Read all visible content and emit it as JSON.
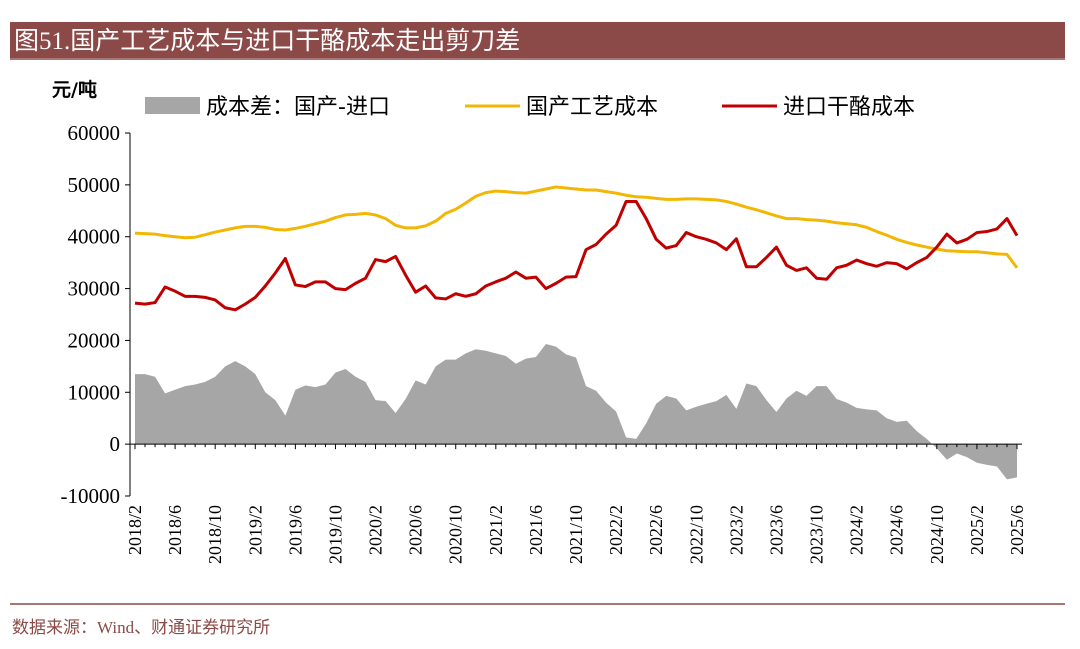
{
  "chart_data": {
    "type": "line",
    "title": "图51.国产工艺成本与进口干酪成本走出剪刀差",
    "y_label": "元/吨",
    "source": "数据来源：Wind、财通证券研究所",
    "categories": [
      "2018/2",
      null,
      null,
      null,
      "2018/6",
      null,
      null,
      null,
      "2018/10",
      null,
      null,
      null,
      "2019/2",
      null,
      null,
      null,
      "2019/6",
      null,
      null,
      null,
      "2019/10",
      null,
      null,
      null,
      "2020/2",
      null,
      null,
      null,
      "2020/6",
      null,
      null,
      null,
      "2020/10",
      null,
      null,
      null,
      "2021/2",
      null,
      null,
      null,
      "2021/6",
      null,
      null,
      null,
      "2021/10",
      null,
      null,
      null,
      "2022/2",
      null,
      null,
      null,
      "2022/6",
      null,
      null,
      null,
      "2022/10",
      null,
      null,
      null,
      "2023/2",
      null,
      null,
      null,
      "2023/6",
      null,
      null,
      null,
      "2023/10",
      null,
      null,
      null,
      "2024/2",
      null,
      null,
      null,
      "2024/6",
      null,
      null,
      null,
      "2024/10",
      null,
      null,
      null,
      "2025/2",
      null,
      null,
      null,
      "2025/6"
    ],
    "ylim": [
      -10000,
      60000
    ],
    "yticks": [
      -10000,
      0,
      10000,
      20000,
      30000,
      40000,
      50000,
      60000
    ],
    "series": [
      {
        "name": "成本差：国产-进口",
        "type": "area",
        "color": "#a6a6a6",
        "values": [
          13500,
          13500,
          13000,
          9800,
          10500,
          11200,
          11500,
          12000,
          13000,
          15000,
          16000,
          15000,
          13500,
          10000,
          8500,
          5500,
          10500,
          11300,
          11000,
          11500,
          13800,
          14500,
          13000,
          12000,
          8500,
          8300,
          6000,
          8700,
          12300,
          11500,
          15000,
          16300,
          16300,
          17500,
          18300,
          18000,
          17500,
          17000,
          15500,
          16500,
          16800,
          19300,
          18800,
          17300,
          16700,
          11200,
          10300,
          8000,
          6300,
          1300,
          1000,
          4000,
          7800,
          9300,
          8800,
          6500,
          7200,
          7800,
          8300,
          9500,
          6800,
          11700,
          11200,
          8500,
          6200,
          8800,
          10300,
          9300,
          11200,
          11200,
          8700,
          8000,
          7000,
          6700,
          6500,
          5000,
          4300,
          4500,
          2500,
          1000,
          -800,
          -3000,
          -1800,
          -2500,
          -3600,
          -4000,
          -4300,
          -6800,
          -6400
        ]
      },
      {
        "name": "国产工艺成本",
        "type": "line",
        "color": "#f2b705",
        "values": [
          40700,
          40600,
          40500,
          40200,
          40000,
          39800,
          39900,
          40400,
          40900,
          41300,
          41700,
          42000,
          42000,
          41800,
          41400,
          41300,
          41600,
          42000,
          42500,
          43000,
          43700,
          44200,
          44300,
          44500,
          44200,
          43500,
          42200,
          41700,
          41700,
          42100,
          43000,
          44500,
          45300,
          46500,
          47800,
          48500,
          48800,
          48700,
          48500,
          48400,
          48800,
          49200,
          49600,
          49400,
          49200,
          49000,
          49000,
          48700,
          48400,
          48000,
          47700,
          47600,
          47400,
          47200,
          47200,
          47300,
          47300,
          47200,
          47100,
          46800,
          46300,
          45700,
          45200,
          44600,
          44000,
          43500,
          43500,
          43300,
          43200,
          43000,
          42700,
          42500,
          42300,
          41800,
          41000,
          40300,
          39500,
          38900,
          38400,
          38000,
          37600,
          37300,
          37200,
          37100,
          37100,
          36900,
          36700,
          36600,
          34000
        ]
      },
      {
        "name": "进口干酪成本",
        "type": "line",
        "color": "#c00000",
        "values": [
          27200,
          27000,
          27300,
          30300,
          29500,
          28500,
          28500,
          28300,
          27800,
          26300,
          25900,
          27000,
          28300,
          30500,
          33000,
          35800,
          30700,
          30400,
          31300,
          31300,
          30000,
          29800,
          31000,
          32000,
          35600,
          35200,
          36200,
          32600,
          29300,
          30500,
          28200,
          28000,
          29000,
          28500,
          29000,
          30500,
          31300,
          32000,
          33200,
          32000,
          32200,
          30000,
          31000,
          32200,
          32300,
          37500,
          38500,
          40500,
          42200,
          46800,
          46800,
          43500,
          39500,
          37800,
          38300,
          40800,
          40000,
          39500,
          38800,
          37500,
          39600,
          34200,
          34200,
          36000,
          38000,
          34500,
          33500,
          34000,
          32000,
          31800,
          34000,
          34500,
          35500,
          34800,
          34300,
          35000,
          34800,
          33800,
          35000,
          36000,
          38000,
          40500,
          38800,
          39500,
          40800,
          41000,
          41500,
          43500,
          40200
        ]
      }
    ]
  }
}
